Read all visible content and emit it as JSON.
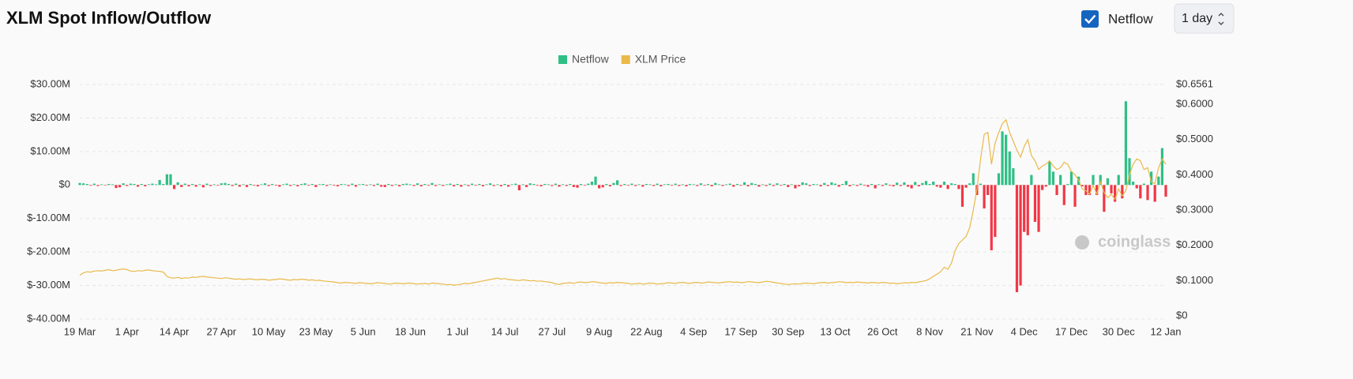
{
  "header": {
    "title": "XLM Spot Inflow/Outflow",
    "checkbox_label": "Netflow",
    "interval": "1 day"
  },
  "watermark": "coinglass",
  "chart_data": {
    "type": "bar",
    "legend": "top",
    "categories": [
      "19 Mar",
      null,
      null,
      null,
      null,
      null,
      null,
      null,
      null,
      null,
      null,
      null,
      null,
      "1 Apr",
      null,
      null,
      null,
      null,
      null,
      null,
      null,
      null,
      null,
      null,
      null,
      null,
      "14 Apr",
      null,
      null,
      null,
      null,
      null,
      null,
      null,
      null,
      null,
      null,
      null,
      null,
      "27 Apr",
      null,
      null,
      null,
      null,
      null,
      null,
      null,
      null,
      null,
      null,
      null,
      null,
      "10 May",
      null,
      null,
      null,
      null,
      null,
      null,
      null,
      null,
      null,
      null,
      null,
      null,
      "23 May",
      null,
      null,
      null,
      null,
      null,
      null,
      null,
      null,
      null,
      null,
      null,
      null,
      "5 Jun",
      null,
      null,
      null,
      null,
      null,
      null,
      null,
      null,
      null,
      null,
      null,
      null,
      "18 Jun",
      null,
      null,
      null,
      null,
      null,
      null,
      null,
      null,
      null,
      null,
      null,
      null,
      "1 Jul",
      null,
      null,
      null,
      null,
      null,
      null,
      null,
      null,
      null,
      null,
      null,
      null,
      "14 Jul",
      null,
      null,
      null,
      null,
      null,
      null,
      null,
      null,
      null,
      null,
      null,
      null,
      "27 Jul",
      null,
      null,
      null,
      null,
      null,
      null,
      null,
      null,
      null,
      null,
      null,
      null,
      "9 Aug",
      null,
      null,
      null,
      null,
      null,
      null,
      null,
      null,
      null,
      null,
      null,
      null,
      "22 Aug",
      null,
      null,
      null,
      null,
      null,
      null,
      null,
      null,
      null,
      null,
      null,
      null,
      "4 Sep",
      null,
      null,
      null,
      null,
      null,
      null,
      null,
      null,
      null,
      null,
      null,
      null,
      "17 Sep",
      null,
      null,
      null,
      null,
      null,
      null,
      null,
      null,
      null,
      null,
      null,
      null,
      "30 Sep",
      null,
      null,
      null,
      null,
      null,
      null,
      null,
      null,
      null,
      null,
      null,
      null,
      "13 Oct",
      null,
      null,
      null,
      null,
      null,
      null,
      null,
      null,
      null,
      null,
      null,
      null,
      "26 Oct",
      null,
      null,
      null,
      null,
      null,
      null,
      null,
      null,
      null,
      null,
      null,
      null,
      "8 Nov",
      null,
      null,
      null,
      null,
      null,
      null,
      null,
      null,
      null,
      null,
      null,
      null,
      "21 Nov",
      null,
      null,
      null,
      null,
      null,
      null,
      null,
      null,
      null,
      null,
      null,
      null,
      "4 Dec",
      null,
      null,
      null,
      null,
      null,
      null,
      null,
      null,
      null,
      null,
      null,
      null,
      "17 Dec",
      null,
      null,
      null,
      null,
      null,
      null,
      null,
      null,
      null,
      null,
      null,
      null,
      "30 Dec",
      null,
      null,
      null,
      null,
      null,
      null,
      null,
      null,
      null,
      null,
      null,
      null,
      "12 Jan"
    ],
    "series": [
      {
        "name": "Netflow",
        "type": "bar",
        "color": "#2fbf85",
        "negative_color": "#f23645",
        "values": [
          0.6,
          0.5,
          0.3,
          -0.2,
          0.4,
          -0.3,
          0.2,
          -0.1,
          0.3,
          0.2,
          -0.9,
          -0.7,
          0.5,
          -0.3,
          0.4,
          0.3,
          -0.5,
          0.3,
          -0.4,
          0.2,
          0.4,
          0.2,
          1.5,
          0.3,
          3.2,
          3.2,
          -1.2,
          0.8,
          -0.6,
          0.4,
          -0.4,
          0.3,
          -0.5,
          0.2,
          -0.7,
          0.4,
          -0.3,
          0.2,
          -0.2,
          0.5,
          0.6,
          0.3,
          -0.3,
          0.4,
          -0.5,
          0.2,
          -0.6,
          0.3,
          -0.2,
          -0.4,
          0.2,
          0.5,
          -0.3,
          0.3,
          -0.2,
          -0.5,
          0.2,
          0.4,
          -0.3,
          0.2,
          -0.4,
          0.3,
          0.5,
          -0.2,
          0.3,
          -0.6,
          0.2,
          0.3,
          -0.3,
          0.2,
          -0.2,
          -0.4,
          0.3,
          0.2,
          -0.3,
          0.4,
          -0.5,
          0.2,
          0.3,
          -0.2,
          0.2,
          -0.3,
          0.4,
          -0.5,
          -0.6,
          0.3,
          -0.3,
          0.2,
          -0.4,
          0.3,
          0.4,
          0.2,
          -0.3,
          0.5,
          -0.4,
          0.3,
          -0.2,
          0.6,
          -0.3,
          0.2,
          -0.3,
          0.2,
          0.4,
          -0.4,
          0.3,
          -0.5,
          0.2,
          -0.3,
          0.4,
          -0.2,
          0.3,
          -0.4,
          0.2,
          0.5,
          -0.3,
          0.2,
          -0.4,
          0.3,
          -0.5,
          0.2,
          0.4,
          -1.6,
          0.2,
          -0.6,
          0.5,
          0.3,
          -0.2,
          -0.4,
          0.3,
          0.2,
          -0.3,
          0.4,
          -0.5,
          0.2,
          -0.3,
          0.3,
          -0.6,
          -0.8,
          0.3,
          -0.2,
          0.4,
          1.0,
          2.5,
          -1.0,
          -0.7,
          0.3,
          -0.4,
          0.6,
          1.4,
          -0.3,
          0.3,
          -0.2,
          0.4,
          -0.3,
          0.2,
          -0.5,
          0.3,
          0.2,
          -0.3,
          0.4,
          -0.4,
          0.2,
          0.3,
          -0.2,
          0.4,
          -0.3,
          0.2,
          -0.4,
          0.3,
          0.2,
          -0.3,
          0.5,
          -0.2,
          0.3,
          -0.4,
          0.6,
          0.2,
          -0.3,
          0.2,
          0.4,
          -0.5,
          0.3,
          -0.2,
          0.8,
          -0.4,
          0.6,
          0.3,
          -0.5,
          0.2,
          -0.3,
          0.4,
          -0.3,
          0.5,
          -0.2,
          0.3,
          -0.6,
          0.2,
          -1.0,
          -0.4,
          0.8,
          0.5,
          -0.3,
          0.3,
          0.2,
          -0.4,
          0.6,
          -0.3,
          0.8,
          0.4,
          -0.5,
          0.3,
          1.2,
          -0.4,
          0.2,
          -0.3,
          0.4,
          -0.2,
          -0.5,
          0.3,
          -1.0,
          0.2,
          -0.3,
          0.5,
          -0.2,
          -0.4,
          0.7,
          -0.3,
          0.8,
          -0.5,
          -1.0,
          0.9,
          -0.4,
          0.6,
          1.2,
          0.3,
          1.0,
          -0.5,
          -0.8,
          1.0,
          -1.2,
          0.5,
          0.3,
          -1.2,
          -6.5,
          -0.8,
          0.5,
          3.5,
          -3.0,
          0.4,
          -7.0,
          -3.0,
          -19.5,
          -15.5,
          3.5,
          16.0,
          15.0,
          10.0,
          5.0,
          -32.0,
          -30.0,
          -14.0,
          -15.0,
          3.0,
          -11.0,
          -14.0,
          -1.5,
          -0.5,
          7.0,
          4.0,
          -3.0,
          3.0,
          -6.0,
          0.3,
          4.0,
          -6.5,
          2.5,
          -0.4,
          -3.0,
          -3.0,
          3.0,
          -3.0,
          3.0,
          -8.0,
          2.0,
          -2.5,
          -5.0,
          3.0,
          -4.0,
          25.0,
          8.0,
          1.0,
          -1.0,
          -4.0,
          0.4,
          -4.5,
          4.0,
          -5.0,
          2.5,
          11.0,
          -3.5
        ]
      },
      {
        "name": "XLM Price",
        "type": "line",
        "axis": "y2",
        "color": "#e9b949",
        "values": [
          0.115,
          0.122,
          0.125,
          0.124,
          0.127,
          0.128,
          0.127,
          0.129,
          0.131,
          0.128,
          0.129,
          0.132,
          0.133,
          0.131,
          0.127,
          0.126,
          0.128,
          0.127,
          0.129,
          0.13,
          0.128,
          0.127,
          0.126,
          0.124,
          0.112,
          0.108,
          0.107,
          0.109,
          0.106,
          0.108,
          0.107,
          0.11,
          0.109,
          0.111,
          0.112,
          0.11,
          0.109,
          0.108,
          0.107,
          0.106,
          0.108,
          0.107,
          0.105,
          0.104,
          0.105,
          0.103,
          0.104,
          0.105,
          0.103,
          0.102,
          0.104,
          0.103,
          0.101,
          0.102,
          0.103,
          0.105,
          0.104,
          0.102,
          0.101,
          0.103,
          0.102,
          0.104,
          0.103,
          0.101,
          0.102,
          0.1,
          0.101,
          0.099,
          0.098,
          0.097,
          0.096,
          0.094,
          0.093,
          0.095,
          0.094,
          0.093,
          0.092,
          0.094,
          0.093,
          0.092,
          0.091,
          0.092,
          0.094,
          0.093,
          0.092,
          0.09,
          0.091,
          0.093,
          0.092,
          0.091,
          0.092,
          0.093,
          0.091,
          0.09,
          0.091,
          0.092,
          0.09,
          0.093,
          0.092,
          0.091,
          0.09,
          0.088,
          0.089,
          0.087,
          0.088,
          0.09,
          0.092,
          0.091,
          0.093,
          0.095,
          0.097,
          0.099,
          0.101,
          0.103,
          0.105,
          0.107,
          0.104,
          0.106,
          0.103,
          0.102,
          0.101,
          0.1,
          0.102,
          0.101,
          0.099,
          0.1,
          0.098,
          0.099,
          0.097,
          0.096,
          0.094,
          0.091,
          0.089,
          0.092,
          0.093,
          0.094,
          0.092,
          0.095,
          0.096,
          0.094,
          0.095,
          0.097,
          0.096,
          0.094,
          0.093,
          0.092,
          0.094,
          0.093,
          0.095,
          0.094,
          0.093,
          0.092,
          0.09,
          0.091,
          0.092,
          0.09,
          0.091,
          0.093,
          0.092,
          0.09,
          0.091,
          0.092,
          0.094,
          0.093,
          0.092,
          0.094,
          0.095,
          0.093,
          0.092,
          0.094,
          0.095,
          0.093,
          0.094,
          0.096,
          0.095,
          0.094,
          0.093,
          0.095,
          0.096,
          0.097,
          0.095,
          0.096,
          0.094,
          0.095,
          0.097,
          0.096,
          0.095,
          0.094,
          0.096,
          0.098,
          0.097,
          0.095,
          0.093,
          0.092,
          0.09,
          0.089,
          0.09,
          0.091,
          0.09,
          0.092,
          0.093,
          0.092,
          0.091,
          0.093,
          0.094,
          0.095,
          0.093,
          0.094,
          0.095,
          0.097,
          0.096,
          0.094,
          0.095,
          0.094,
          0.096,
          0.095,
          0.094,
          0.093,
          0.095,
          0.094,
          0.093,
          0.095,
          0.094,
          0.092,
          0.093,
          0.091,
          0.092,
          0.094,
          0.093,
          0.095,
          0.094,
          0.096,
          0.098,
          0.1,
          0.105,
          0.112,
          0.118,
          0.125,
          0.138,
          0.132,
          0.15,
          0.185,
          0.205,
          0.215,
          0.225,
          0.25,
          0.3,
          0.36,
          0.445,
          0.515,
          0.52,
          0.43,
          0.49,
          0.52,
          0.545,
          0.556,
          0.52,
          0.495,
          0.47,
          0.45,
          0.48,
          0.5,
          0.455,
          0.44,
          0.415,
          0.425,
          0.43,
          0.44,
          0.425,
          0.415,
          0.42,
          0.435,
          0.43,
          0.41,
          0.4,
          0.385,
          0.36,
          0.355,
          0.345,
          0.37,
          0.345,
          0.38,
          0.35,
          0.335,
          0.345,
          0.33,
          0.36,
          0.34,
          0.355,
          0.4,
          0.43,
          0.445,
          0.44,
          0.415,
          0.42,
          0.38,
          0.375,
          0.42,
          0.445,
          0.43
        ]
      }
    ],
    "ylim": [
      -40,
      30
    ],
    "yticks": [
      {
        "value": 30,
        "label": "$30.00M"
      },
      {
        "value": 20,
        "label": "$20.00M"
      },
      {
        "value": 10,
        "label": "$10.00M"
      },
      {
        "value": 0,
        "label": "$0"
      },
      {
        "value": -10,
        "label": "$-10.00M"
      },
      {
        "value": -20,
        "label": "$-20.00M"
      },
      {
        "value": -30,
        "label": "$-30.00M"
      },
      {
        "value": -40,
        "label": "$-40.00M"
      }
    ],
    "y2lim": [
      0,
      0.6561
    ],
    "y2ticks": [
      {
        "value": 0.6561,
        "label": "$0.6561"
      },
      {
        "value": 0.6,
        "label": "$0.6000"
      },
      {
        "value": 0.5,
        "label": "$0.5000"
      },
      {
        "value": 0.4,
        "label": "$0.4000"
      },
      {
        "value": 0.3,
        "label": "$0.3000"
      },
      {
        "value": 0.2,
        "label": "$0.2000"
      },
      {
        "value": 0.1,
        "label": "$0.1000"
      },
      {
        "value": 0,
        "label": "$0"
      }
    ],
    "grid": true
  }
}
